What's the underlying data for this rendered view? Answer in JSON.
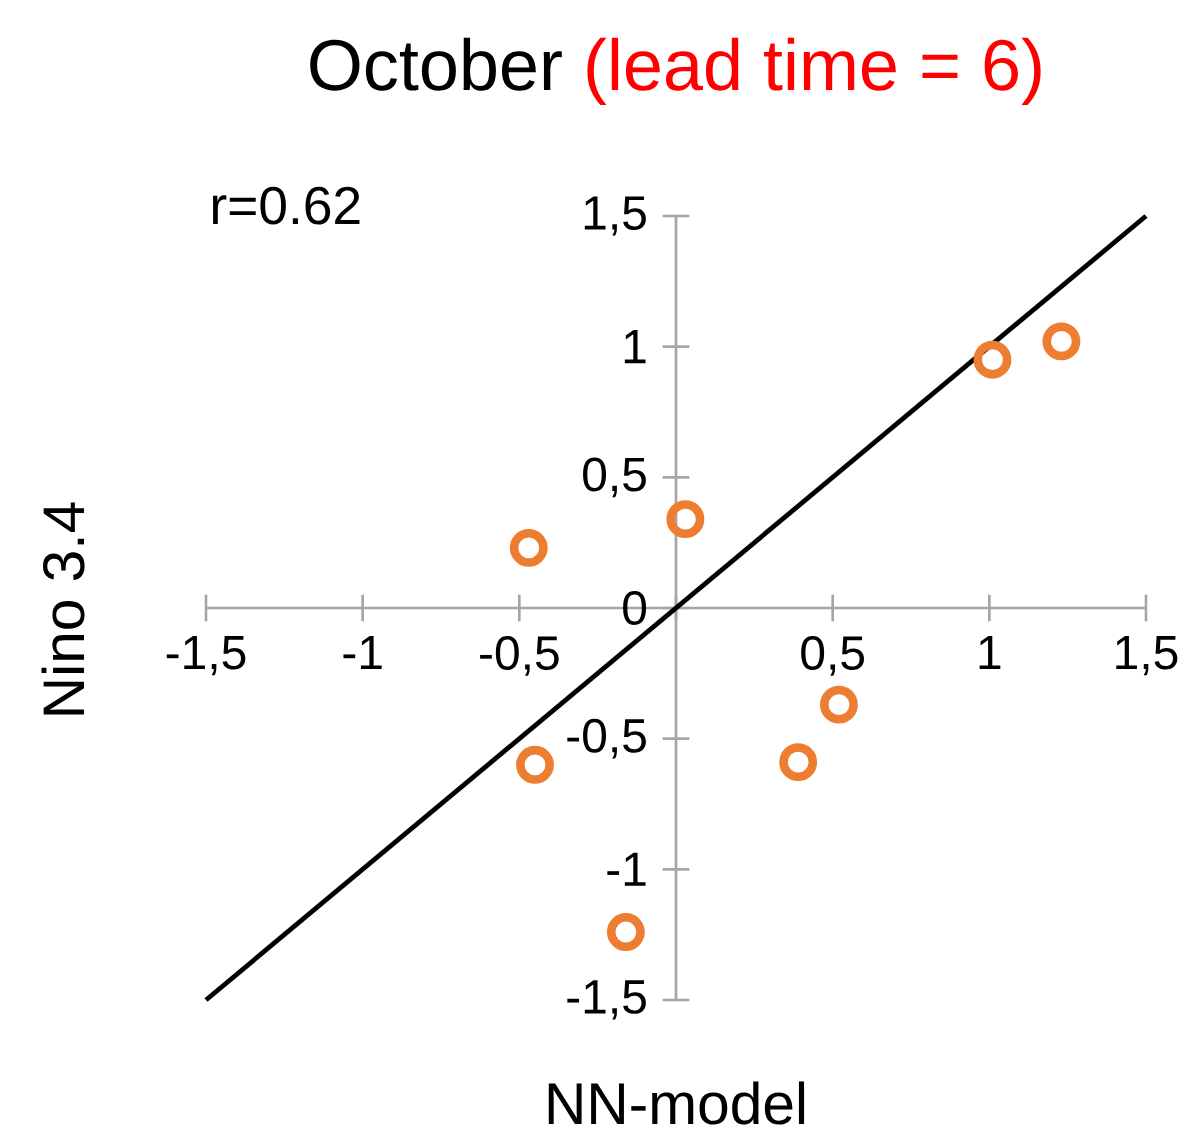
{
  "chart_data": {
    "type": "scatter",
    "title": "October",
    "subtitle": "(lead time = 6)",
    "xlabel": "NN-model",
    "ylabel": "Nino 3.4",
    "annotations": [
      "r=0.62"
    ],
    "xlim": [
      -1.5,
      1.5
    ],
    "ylim": [
      -1.5,
      1.5
    ],
    "xticks": [
      {
        "value": -1.5,
        "label": "-1,5"
      },
      {
        "value": -1,
        "label": "-1"
      },
      {
        "value": -0.5,
        "label": "-0,5"
      },
      {
        "value": 0,
        "label": null
      },
      {
        "value": 0.5,
        "label": "0,5"
      },
      {
        "value": 1,
        "label": "1"
      },
      {
        "value": 1.5,
        "label": "1,5"
      }
    ],
    "yticks": [
      {
        "value": -1.5,
        "label": "-1,5"
      },
      {
        "value": -1,
        "label": "-1"
      },
      {
        "value": -0.5,
        "label": "-0,5"
      },
      {
        "value": 0,
        "label": "0"
      },
      {
        "value": 0.5,
        "label": "0,5"
      },
      {
        "value": 1,
        "label": "1"
      },
      {
        "value": 1.5,
        "label": "1,5"
      }
    ],
    "marker": "circle",
    "series": [
      {
        "color": "#ed7d31",
        "x": [
          -0.47,
          0.03,
          1.01,
          1.23,
          -0.45,
          0.52,
          0.39,
          -0.16
        ],
        "values": [
          0.23,
          0.34,
          0.95,
          1.02,
          -0.6,
          -0.37,
          -0.59,
          -1.24
        ]
      },
      {
        "type": "line",
        "color": "#000000",
        "marker": "none",
        "x": [
          -1.5,
          1.5
        ],
        "values": [
          -1.5,
          1.5
        ]
      }
    ]
  }
}
